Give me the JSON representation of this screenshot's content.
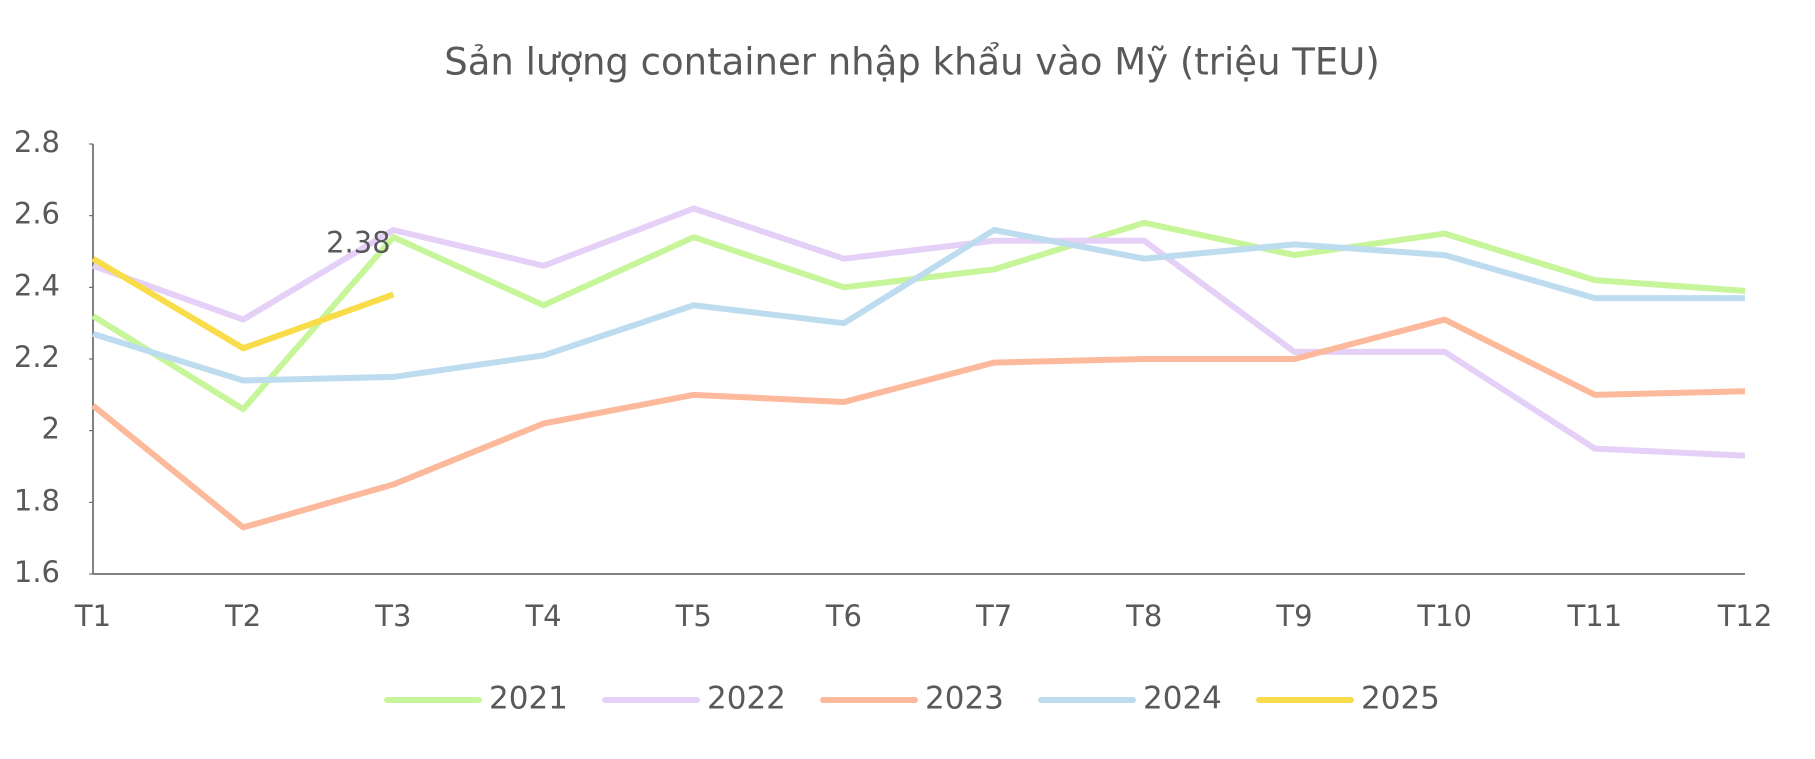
{
  "chart_data": {
    "type": "line",
    "title": "Sản lượng container nhập khẩu vào Mỹ (triệu TEU)",
    "categories": [
      "T1",
      "T2",
      "T3",
      "T4",
      "T5",
      "T6",
      "T7",
      "T8",
      "T9",
      "T10",
      "T11",
      "T12"
    ],
    "series": [
      {
        "name": "2021",
        "color": "#c6f59a",
        "values": [
          2.32,
          2.06,
          2.54,
          2.35,
          2.54,
          2.4,
          2.45,
          2.58,
          2.49,
          2.55,
          2.42,
          2.39
        ]
      },
      {
        "name": "2022",
        "color": "#e5d0f7",
        "values": [
          2.46,
          2.31,
          2.56,
          2.46,
          2.62,
          2.48,
          2.53,
          2.53,
          2.22,
          2.22,
          1.95,
          1.93
        ]
      },
      {
        "name": "2023",
        "color": "#fdb99c",
        "values": [
          2.07,
          1.73,
          1.85,
          2.02,
          2.1,
          2.08,
          2.19,
          2.2,
          2.2,
          2.31,
          2.1,
          2.11
        ]
      },
      {
        "name": "2024",
        "color": "#bddcef",
        "values": [
          2.27,
          2.14,
          2.15,
          2.21,
          2.35,
          2.3,
          2.56,
          2.48,
          2.52,
          2.49,
          2.37,
          2.37
        ]
      },
      {
        "name": "2025",
        "color": "#f9dc4a",
        "values": [
          2.48,
          2.23,
          2.38,
          null,
          null,
          null,
          null,
          null,
          null,
          null,
          null,
          null
        ],
        "data_labels": true
      }
    ],
    "ylim": [
      1.6,
      2.8
    ],
    "yticks": [
      1.6,
      1.8,
      2,
      2.2,
      2.4,
      2.6,
      2.8
    ],
    "grid": false,
    "legend": "bottom"
  }
}
